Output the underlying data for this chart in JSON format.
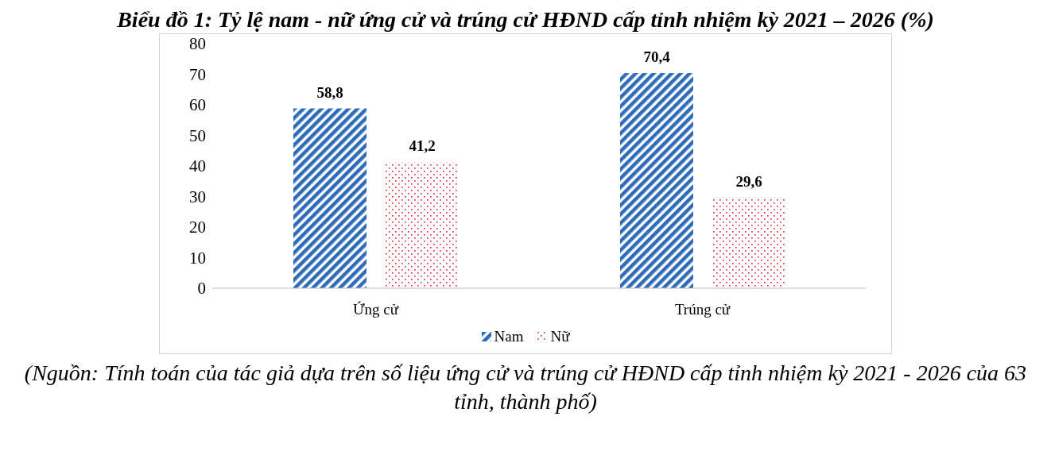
{
  "chart_data": {
    "type": "bar",
    "title": "Biểu đồ 1: Tỷ lệ nam - nữ ứng cử và trúng cử HĐND cấp tỉnh nhiệm kỳ 2021 – 2026 (%)",
    "categories": [
      "Ứng cử",
      "Trúng cử"
    ],
    "series": [
      {
        "name": "Nam",
        "color": "#2e6bb8",
        "values": [
          58.8,
          70.4
        ],
        "value_labels": [
          "58,8",
          "70,4"
        ]
      },
      {
        "name": "Nữ",
        "color": "#e8202a",
        "values": [
          41.2,
          29.6
        ],
        "value_labels": [
          "41,2",
          "29,6"
        ]
      }
    ],
    "ylim": [
      0,
      80
    ],
    "yticks": [
      0,
      10,
      20,
      30,
      40,
      50,
      60,
      70,
      80
    ],
    "grid": false,
    "legend": "bottom",
    "annotations": [
      "(Nguồn: Tính toán của tác giả dựa trên số liệu ứng cử và trúng cử HĐND cấp tỉnh nhiệm kỳ 2021 - 2026 của 63 tỉnh, thành phố)"
    ]
  }
}
